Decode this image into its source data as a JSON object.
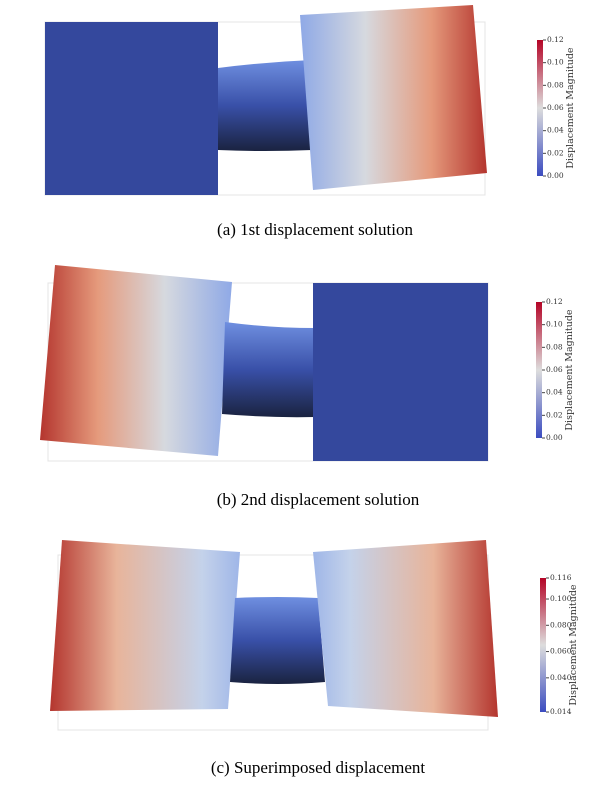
{
  "panels": [
    {
      "caption": "(a) 1st displacement solution",
      "colorbar": {
        "title": "Displacement Magnitude",
        "ticks": [
          {
            "value": 0.12,
            "label": "0.12"
          },
          {
            "value": 0.1,
            "label": "0.10"
          },
          {
            "value": 0.08,
            "label": "0.08"
          },
          {
            "value": 0.06,
            "label": "0.06"
          },
          {
            "value": 0.04,
            "label": "0.04"
          },
          {
            "value": 0.02,
            "label": "0.02"
          },
          {
            "value": 0,
            "label": "0.00"
          }
        ]
      }
    },
    {
      "caption": "(b) 2nd displacement solution",
      "colorbar": {
        "title": "Displacement Magnitude",
        "ticks": [
          {
            "value": 0.12,
            "label": "0.12"
          },
          {
            "value": 0.1,
            "label": "0.10"
          },
          {
            "value": 0.08,
            "label": "0.08"
          },
          {
            "value": 0.06,
            "label": "0.06"
          },
          {
            "value": 0.04,
            "label": "0.04"
          },
          {
            "value": 0.02,
            "label": "0.02"
          },
          {
            "value": 0,
            "label": "0.00"
          }
        ]
      }
    },
    {
      "caption": "(c) Superimposed displacement",
      "colorbar": {
        "title": "Displacement Magnitude",
        "ticks": [
          0.116,
          {
            "value": 0.1,
            "label": "0.100"
          },
          {
            "value": 0.08,
            "label": "0.080"
          },
          {
            "value": 0.06,
            "label": "0.060"
          },
          {
            "value": 0.04,
            "label": "0.040"
          },
          0.014
        ]
      }
    }
  ]
}
